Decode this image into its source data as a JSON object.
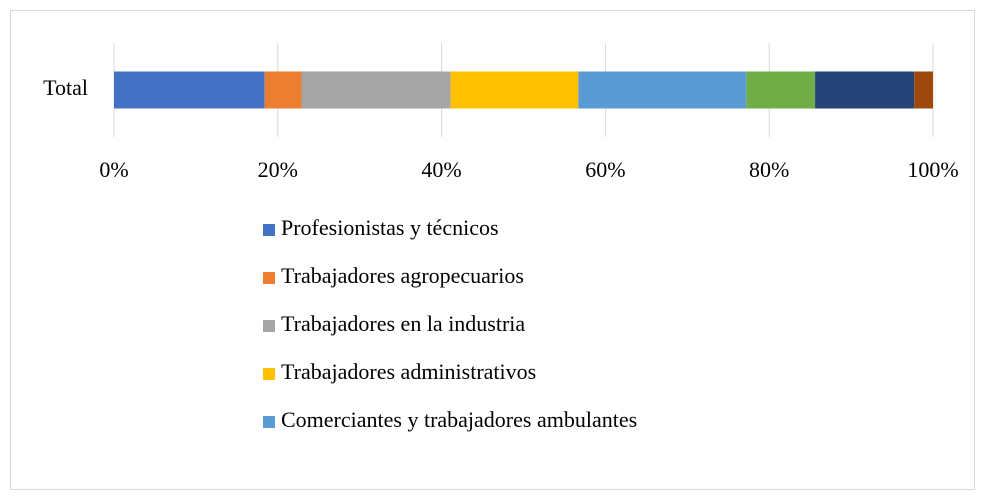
{
  "chart_data": {
    "type": "stacked_bar_horizontal",
    "categories": [
      "Total"
    ],
    "series": [
      {
        "name": "Profesionistas y técnicos",
        "color": "#4472c4",
        "values": [
          18.4
        ]
      },
      {
        "name": "Trabajadores agropecuarios",
        "color": "#ed7d31",
        "values": [
          4.5
        ]
      },
      {
        "name": "Trabajadores en la industria",
        "color": "#a5a5a5",
        "values": [
          18.2
        ]
      },
      {
        "name": "Trabajadores administrativos",
        "color": "#ffc000",
        "values": [
          15.6
        ]
      },
      {
        "name": "Comerciantes y trabajadores ambulantes",
        "color": "#5b9bd5",
        "values": [
          20.5
        ]
      },
      {
        "color": "#70ad47",
        "values": [
          8.4
        ]
      },
      {
        "color": "#264478",
        "values": [
          12.1
        ]
      },
      {
        "color": "#9e480e",
        "values": [
          2.3
        ]
      }
    ],
    "xlim": [
      0,
      100
    ],
    "xticks": [
      {
        "value": 0,
        "label": "0%"
      },
      {
        "value": 20,
        "label": "20%"
      },
      {
        "value": 40,
        "label": "40%"
      },
      {
        "value": 60,
        "label": "60%"
      },
      {
        "value": 80,
        "label": "80%"
      },
      {
        "value": 100,
        "label": "100%"
      }
    ],
    "grid": true,
    "legend": "bottom"
  }
}
